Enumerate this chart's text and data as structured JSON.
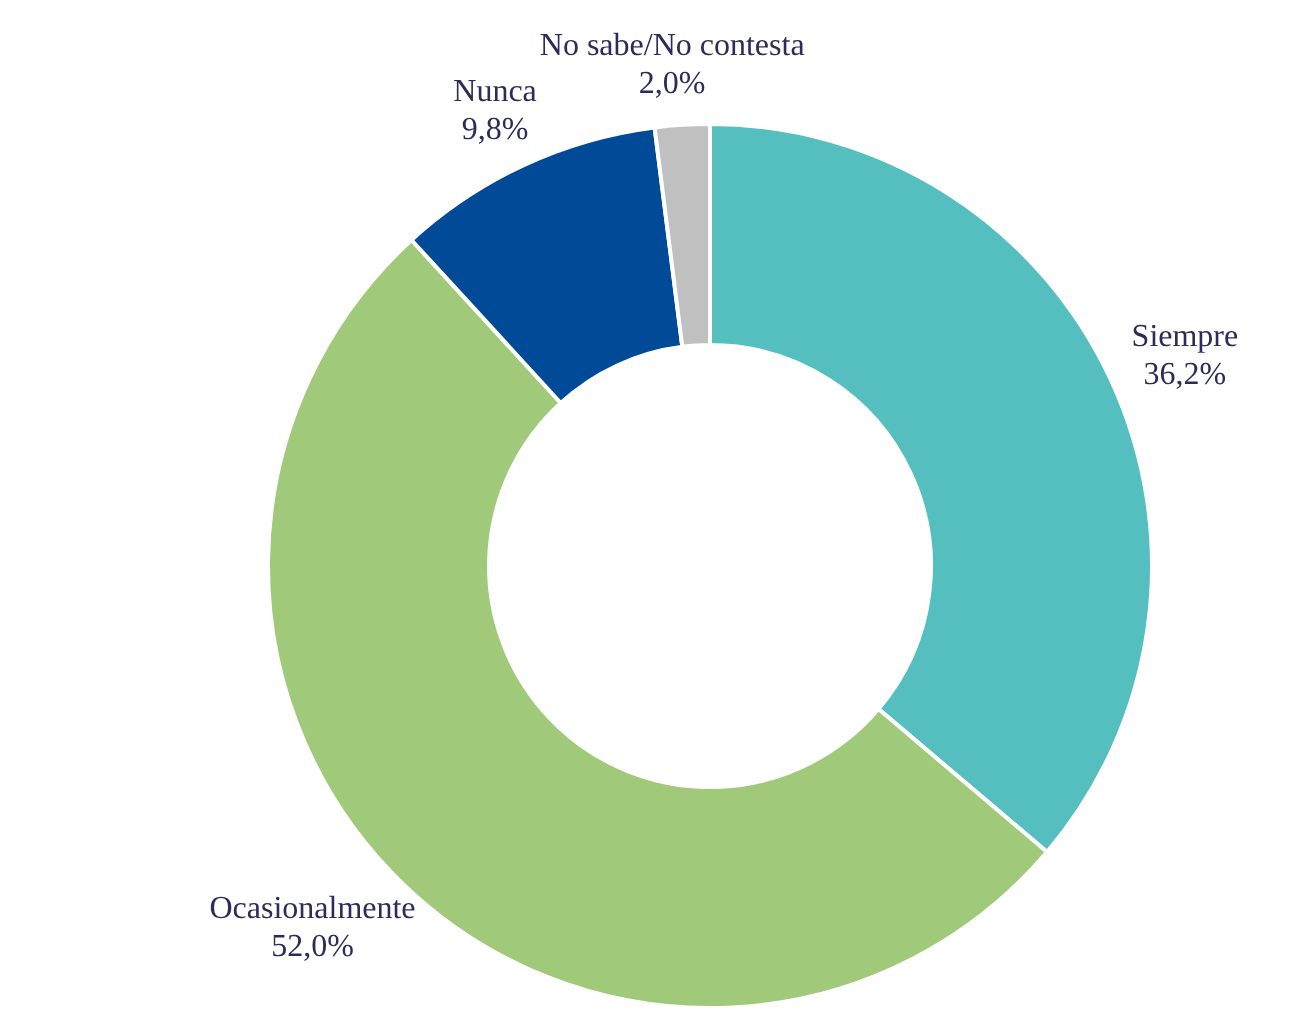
{
  "chart_data": {
    "type": "donut",
    "categories": [
      "Siempre",
      "Ocasionalmente",
      "Nunca",
      "No sabe/No contesta"
    ],
    "values": [
      36.2,
      52.0,
      9.8,
      2.0
    ],
    "value_labels": [
      "36,2%",
      "52,0%",
      "9,8%",
      "2,0%"
    ],
    "colors": [
      "#55bfbf",
      "#a0c97a",
      "#004a98",
      "#c0c0c0"
    ],
    "legend": false
  }
}
